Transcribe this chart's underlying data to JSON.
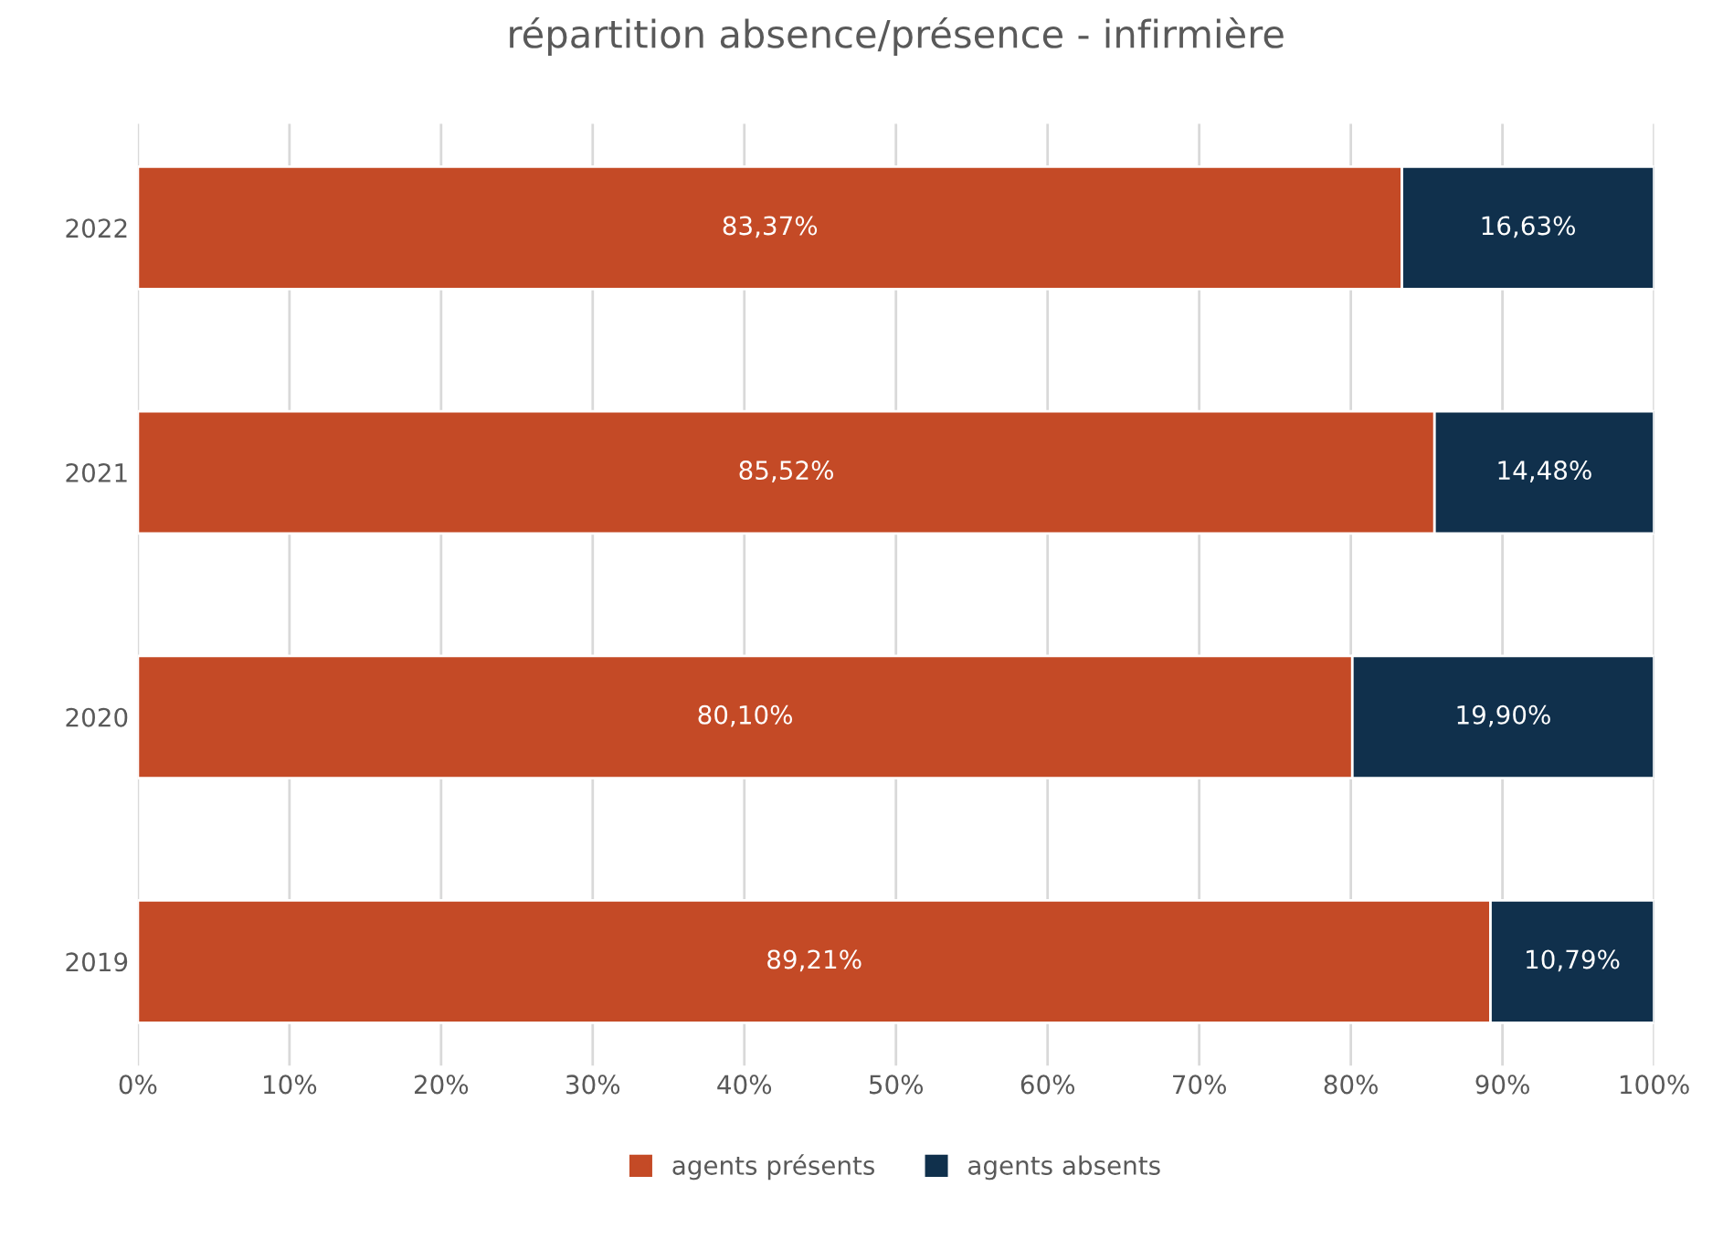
{
  "chart_data": {
    "type": "bar",
    "orientation": "horizontal",
    "stacked": true,
    "title": "répartition absence/présence - infirmière",
    "categories": [
      "2022",
      "2021",
      "2020",
      "2019"
    ],
    "series": [
      {
        "name": "agents présents",
        "color": "#c44a26",
        "values": [
          83.37,
          85.52,
          80.1,
          89.21
        ],
        "value_labels": [
          "83,37%",
          "85,52%",
          "80,10%",
          "89,21%"
        ]
      },
      {
        "name": "agents absents",
        "color": "#10304c",
        "values": [
          16.63,
          14.48,
          19.9,
          10.79
        ],
        "value_labels": [
          "16,63%",
          "14,48%",
          "19,90%",
          "10,79%"
        ]
      }
    ],
    "xlim": [
      0,
      100
    ],
    "xticks": [
      {
        "value": 0,
        "label": "0%"
      },
      {
        "value": 10,
        "label": "10%"
      },
      {
        "value": 20,
        "label": "20%"
      },
      {
        "value": 30,
        "label": "30%"
      },
      {
        "value": 40,
        "label": "40%"
      },
      {
        "value": 50,
        "label": "50%"
      },
      {
        "value": 60,
        "label": "60%"
      },
      {
        "value": 70,
        "label": "70%"
      },
      {
        "value": 80,
        "label": "80%"
      },
      {
        "value": 90,
        "label": "90%"
      },
      {
        "value": 100,
        "label": "100%"
      }
    ],
    "grid": "x",
    "legend": "bottom"
  }
}
